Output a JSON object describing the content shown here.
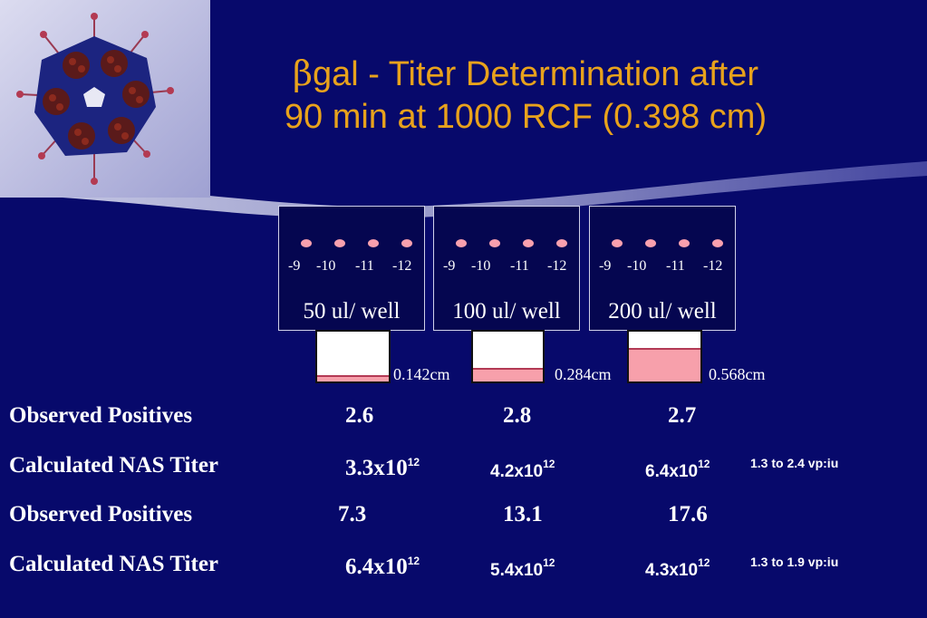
{
  "colors": {
    "background": "#07096b",
    "title": "#e8a21c",
    "pink": "#f7a0ab"
  },
  "title": {
    "greek": "β",
    "line1_rest": "gal - Titer Determination after",
    "line2": "90 min at 1000 RCF (0.398 cm)"
  },
  "virus_image": {
    "icon": "adenovirus-illustration"
  },
  "panels": [
    {
      "dilutions": [
        "-9",
        "-10",
        "-11",
        "-12"
      ],
      "label": "50 ul/ well",
      "tube_label": "0.142cm",
      "fill_fraction": 0.13
    },
    {
      "dilutions": [
        "-9",
        "-10",
        "-11",
        "-12"
      ],
      "label": "100 ul/ well",
      "tube_label": "0.284cm",
      "fill_fraction": 0.27
    },
    {
      "dilutions": [
        "-9",
        "-10",
        "-11",
        "-12"
      ],
      "label": "200 ul/ well",
      "tube_label": "0.568cm",
      "fill_fraction": 0.67
    }
  ],
  "rows": [
    {
      "label": "Observed Positives",
      "values": [
        "2.6",
        "2.8",
        "2.7"
      ]
    },
    {
      "label": "Calculated NAS Titer",
      "values": [
        {
          "mantissa": "3.3x10",
          "exp": "12"
        },
        {
          "mantissa": "4.2x10",
          "exp": "12"
        },
        {
          "mantissa": "6.4x10",
          "exp": "12"
        }
      ],
      "note": "1.3 to 2.4 vp:iu"
    },
    {
      "label": "Observed Positives",
      "values": [
        "7.3",
        "13.1",
        "17.6"
      ]
    },
    {
      "label": "Calculated NAS Titer",
      "values": [
        {
          "mantissa": "6.4x10",
          "exp": "12"
        },
        {
          "mantissa": "5.4x10",
          "exp": "12"
        },
        {
          "mantissa": "4.3x10",
          "exp": "12"
        }
      ],
      "note": "1.3 to 1.9 vp:iu"
    }
  ]
}
